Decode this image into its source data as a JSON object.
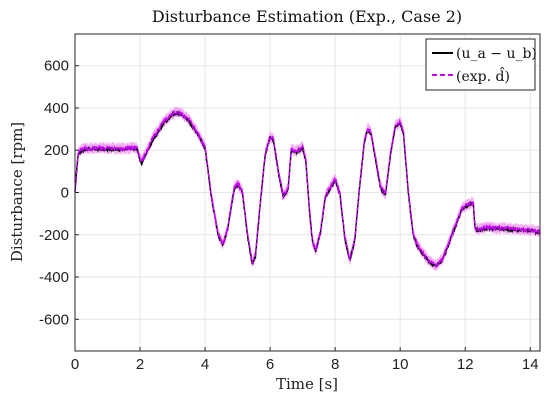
{
  "chart_data": {
    "type": "line",
    "title": "Disturbance Estimation (Exp., Case 2)",
    "xlabel": "Time [s]",
    "ylabel": "Disturbance [rpm]",
    "xlim": [
      0,
      14.3
    ],
    "ylim": [
      -750,
      750
    ],
    "xticks": [
      0,
      2,
      4,
      6,
      8,
      10,
      12,
      14
    ],
    "yticks": [
      600,
      400,
      200,
      0,
      -200,
      -400,
      -600
    ],
    "grid": true,
    "legend_position": "top-right",
    "legend": {
      "entry1": "(u_a − u_b)",
      "entry2": "(exp. d̂)"
    },
    "colors": {
      "series1": "#000000",
      "series2": "#cc00ff",
      "noise": "#f2a6f2"
    },
    "series": [
      {
        "name": "(u_a − u_b)",
        "style": "solid",
        "x": [
          0,
          0.05,
          0.1,
          0.2,
          0.5,
          1.0,
          1.5,
          1.9,
          2.0,
          2.05,
          2.2,
          2.4,
          2.7,
          3.0,
          3.2,
          3.5,
          3.8,
          4.0,
          4.2,
          4.4,
          4.55,
          4.7,
          4.9,
          5.0,
          5.15,
          5.3,
          5.45,
          5.55,
          5.7,
          5.85,
          6.0,
          6.1,
          6.25,
          6.4,
          6.55,
          6.65,
          6.8,
          7.0,
          7.1,
          7.2,
          7.3,
          7.4,
          7.55,
          7.7,
          7.85,
          8.0,
          8.15,
          8.3,
          8.45,
          8.6,
          8.75,
          8.9,
          9.0,
          9.1,
          9.25,
          9.4,
          9.55,
          9.7,
          9.85,
          10.0,
          10.1,
          10.25,
          10.4,
          10.55,
          10.7,
          10.9,
          11.1,
          11.3,
          11.5,
          11.7,
          11.9,
          12.1,
          12.25,
          12.3,
          12.4,
          12.6,
          13.0,
          13.5,
          14.0,
          14.3
        ],
        "y": [
          0,
          100,
          180,
          200,
          205,
          205,
          205,
          210,
          150,
          140,
          190,
          250,
          320,
          370,
          375,
          340,
          270,
          210,
          -30,
          -200,
          -250,
          -170,
          20,
          40,
          0,
          -200,
          -340,
          -300,
          -50,
          180,
          260,
          250,
          100,
          -20,
          10,
          200,
          190,
          210,
          150,
          -70,
          -230,
          -280,
          -190,
          -20,
          20,
          60,
          -10,
          -220,
          -320,
          -230,
          20,
          240,
          300,
          280,
          150,
          20,
          -10,
          180,
          310,
          330,
          280,
          0,
          -200,
          -260,
          -290,
          -330,
          -350,
          -320,
          -240,
          -160,
          -80,
          -60,
          -50,
          -170,
          -180,
          -170,
          -170,
          -175,
          -180,
          -190
        ]
      },
      {
        "name": "(exp. d̂)",
        "style": "dashed",
        "x": [
          0,
          0.05,
          0.1,
          0.2,
          0.5,
          1.0,
          1.5,
          1.9,
          2.0,
          2.05,
          2.2,
          2.4,
          2.7,
          3.0,
          3.2,
          3.5,
          3.8,
          4.0,
          4.2,
          4.4,
          4.55,
          4.7,
          4.9,
          5.0,
          5.15,
          5.3,
          5.45,
          5.55,
          5.7,
          5.85,
          6.0,
          6.1,
          6.25,
          6.4,
          6.55,
          6.65,
          6.8,
          7.0,
          7.1,
          7.2,
          7.3,
          7.4,
          7.55,
          7.7,
          7.85,
          8.0,
          8.15,
          8.3,
          8.45,
          8.6,
          8.75,
          8.9,
          9.0,
          9.1,
          9.25,
          9.4,
          9.55,
          9.7,
          9.85,
          10.0,
          10.1,
          10.25,
          10.4,
          10.55,
          10.7,
          10.9,
          11.1,
          11.3,
          11.5,
          11.7,
          11.9,
          12.1,
          12.25,
          12.3,
          12.4,
          12.6,
          13.0,
          13.5,
          14.0,
          14.3
        ],
        "y": [
          0,
          110,
          185,
          205,
          210,
          210,
          208,
          212,
          160,
          150,
          195,
          260,
          330,
          375,
          380,
          345,
          275,
          215,
          -20,
          -195,
          -245,
          -165,
          25,
          45,
          5,
          -195,
          -335,
          -295,
          -45,
          185,
          265,
          255,
          105,
          -15,
          15,
          205,
          195,
          215,
          155,
          -65,
          -225,
          -275,
          -185,
          -15,
          25,
          65,
          -5,
          -215,
          -315,
          -225,
          25,
          245,
          305,
          285,
          155,
          25,
          -5,
          185,
          315,
          335,
          285,
          5,
          -195,
          -255,
          -285,
          -325,
          -345,
          -315,
          -235,
          -155,
          -75,
          -55,
          -45,
          -165,
          -175,
          -165,
          -168,
          -172,
          -178,
          -185
        ]
      }
    ]
  }
}
